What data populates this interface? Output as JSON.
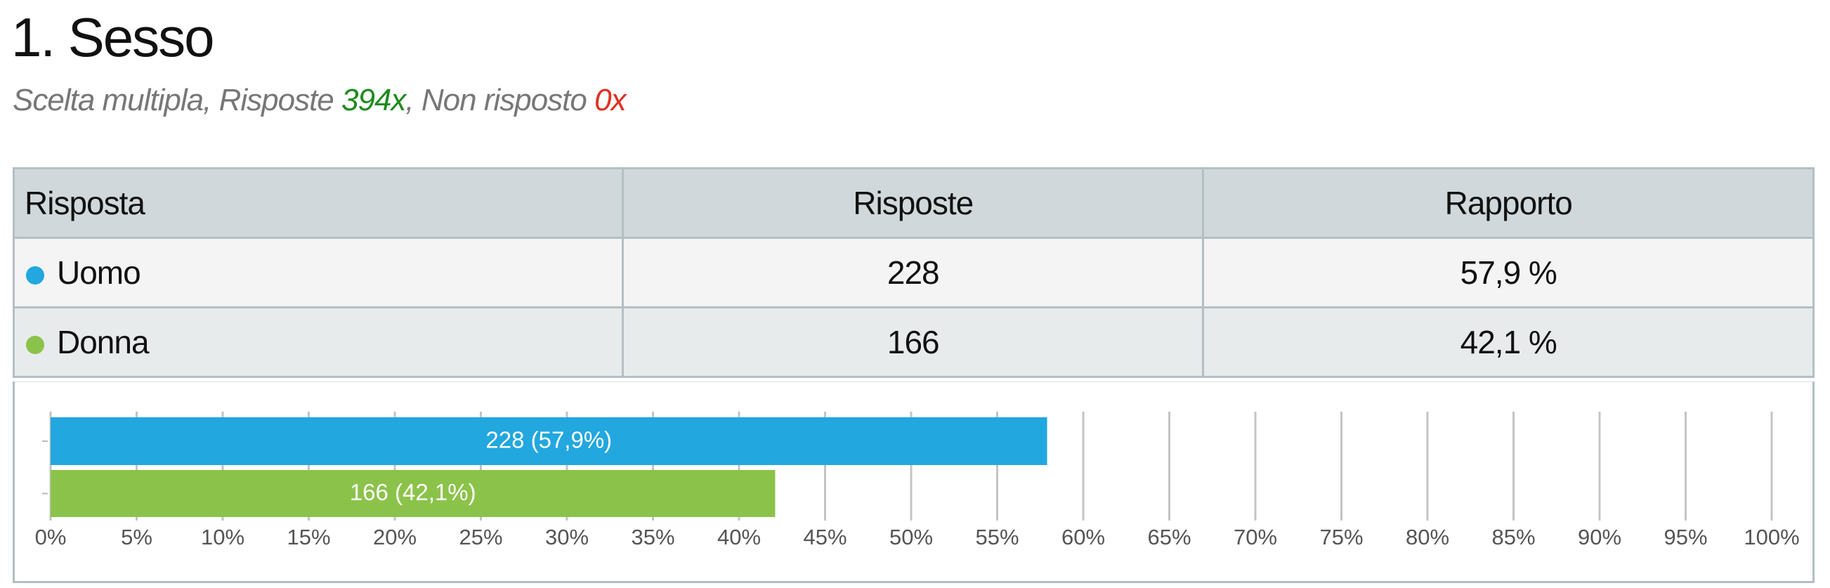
{
  "header": {
    "title": "1. Sesso",
    "subtitle": [
      "Scelta multipla, Risposte ",
      "394x",
      ", Non risposto ",
      "0x"
    ]
  },
  "table": {
    "columns": [
      "Risposta",
      "Risposte",
      "Rapporto"
    ],
    "rows": [
      [
        "Uomo",
        "228",
        "57,9 %"
      ],
      [
        "Donna",
        "166",
        "42,1 %"
      ]
    ]
  },
  "chart_data": {
    "type": "hbar",
    "values": [
      57.9,
      42.1
    ],
    "value_labels": [
      "228 (57,9%)",
      "166 (42,1%)"
    ],
    "colors": [
      "#22a7df",
      "#8bc34a"
    ],
    "xlim": [
      0,
      100
    ],
    "xticks": [
      {
        "value": 0,
        "label": "0%"
      },
      {
        "value": 5,
        "label": "5%"
      },
      {
        "value": 10,
        "label": "10%"
      },
      {
        "value": 15,
        "label": "15%"
      },
      {
        "value": 20,
        "label": "20%"
      },
      {
        "value": 25,
        "label": "25%"
      },
      {
        "value": 30,
        "label": "30%"
      },
      {
        "value": 35,
        "label": "35%"
      },
      {
        "value": 40,
        "label": "40%"
      },
      {
        "value": 45,
        "label": "45%"
      },
      {
        "value": 50,
        "label": "50%"
      },
      {
        "value": 55,
        "label": "55%"
      },
      {
        "value": 60,
        "label": "60%"
      },
      {
        "value": 65,
        "label": "65%"
      },
      {
        "value": 70,
        "label": "70%"
      },
      {
        "value": 75,
        "label": "75%"
      },
      {
        "value": 80,
        "label": "80%"
      },
      {
        "value": 85,
        "label": "85%"
      },
      {
        "value": 90,
        "label": "90%"
      },
      {
        "value": 95,
        "label": "95%"
      },
      {
        "value": 100,
        "label": "100%"
      }
    ],
    "grid": true
  }
}
